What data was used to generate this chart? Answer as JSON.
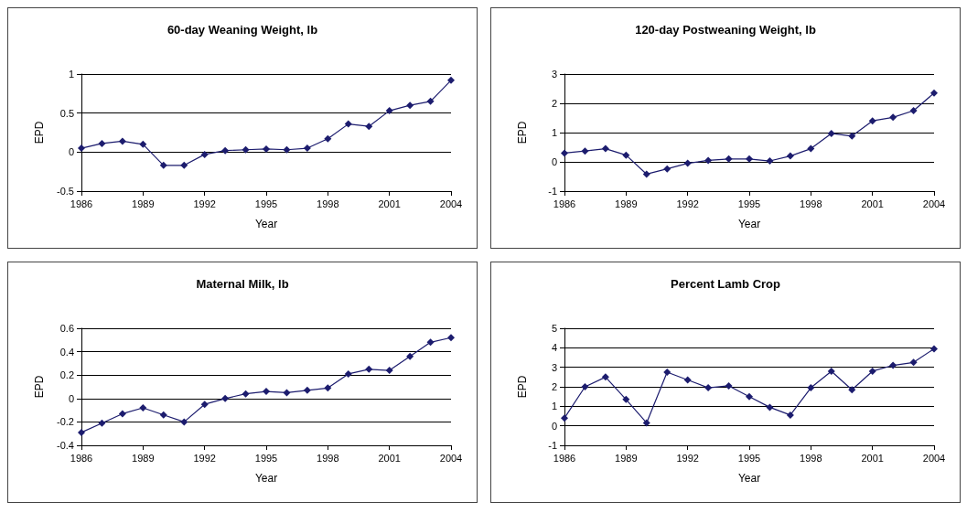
{
  "chart_data": [
    {
      "type": "line",
      "title": "60-day Weaning Weight, lb",
      "xlabel": "Year",
      "ylabel": "EPD",
      "color": "#1c1c6e",
      "marker": "diamond",
      "grid": "y",
      "x": [
        1986,
        1987,
        1988,
        1989,
        1990,
        1991,
        1992,
        1993,
        1994,
        1995,
        1996,
        1997,
        1998,
        1999,
        2000,
        2001,
        2002,
        2003,
        2004
      ],
      "values": [
        0.05,
        0.11,
        0.14,
        0.1,
        -0.17,
        -0.17,
        -0.03,
        0.02,
        0.03,
        0.04,
        0.03,
        0.05,
        0.17,
        0.36,
        0.33,
        0.53,
        0.6,
        0.65,
        0.92
      ],
      "xlim": [
        1986,
        2004
      ],
      "xticks": [
        1986,
        1989,
        1992,
        1995,
        1998,
        2001,
        2004
      ],
      "ylim": [
        -0.5,
        1
      ],
      "yticks": [
        -0.5,
        0,
        0.5,
        1
      ]
    },
    {
      "type": "line",
      "title": "120-day Postweaning Weight, lb",
      "xlabel": "Year",
      "ylabel": "EPD",
      "color": "#1c1c6e",
      "marker": "diamond",
      "grid": "y",
      "x": [
        1986,
        1987,
        1988,
        1989,
        1990,
        1991,
        1992,
        1993,
        1994,
        1995,
        1996,
        1997,
        1998,
        1999,
        2000,
        2001,
        2002,
        2003,
        2004
      ],
      "values": [
        0.3,
        0.37,
        0.45,
        0.23,
        -0.42,
        -0.24,
        -0.05,
        0.05,
        0.1,
        0.1,
        0.03,
        0.2,
        0.45,
        0.97,
        0.88,
        1.4,
        1.52,
        1.75,
        2.35
      ],
      "xlim": [
        1986,
        2004
      ],
      "xticks": [
        1986,
        1989,
        1992,
        1995,
        1998,
        2001,
        2004
      ],
      "ylim": [
        -1,
        3
      ],
      "yticks": [
        -1,
        0,
        1,
        2,
        3
      ]
    },
    {
      "type": "line",
      "title": "Maternal Milk, lb",
      "xlabel": "Year",
      "ylabel": "EPD",
      "color": "#1c1c6e",
      "marker": "diamond",
      "grid": "y",
      "x": [
        1986,
        1987,
        1988,
        1989,
        1990,
        1991,
        1992,
        1993,
        1994,
        1995,
        1996,
        1997,
        1998,
        1999,
        2000,
        2001,
        2002,
        2003,
        2004
      ],
      "values": [
        -0.29,
        -0.21,
        -0.13,
        -0.08,
        -0.14,
        -0.2,
        -0.05,
        0,
        0.04,
        0.06,
        0.05,
        0.07,
        0.09,
        0.21,
        0.25,
        0.24,
        0.36,
        0.48,
        0.52
      ],
      "xlim": [
        1986,
        2004
      ],
      "xticks": [
        1986,
        1989,
        1992,
        1995,
        1998,
        2001,
        2004
      ],
      "ylim": [
        -0.4,
        0.6
      ],
      "yticks": [
        -0.4,
        -0.2,
        0,
        0.2,
        0.4,
        0.6
      ]
    },
    {
      "type": "line",
      "title": "Percent Lamb Crop",
      "xlabel": "Year",
      "ylabel": "EPD",
      "color": "#1c1c6e",
      "marker": "diamond",
      "grid": "y",
      "x": [
        1986,
        1987,
        1988,
        1989,
        1990,
        1991,
        1992,
        1993,
        1994,
        1995,
        1996,
        1997,
        1998,
        1999,
        2000,
        2001,
        2002,
        2003,
        2004
      ],
      "values": [
        0.4,
        2.0,
        2.5,
        1.35,
        0.15,
        2.75,
        2.35,
        1.95,
        2.05,
        1.5,
        0.95,
        0.55,
        1.95,
        2.8,
        1.85,
        2.8,
        3.1,
        3.25,
        3.95
      ],
      "xlim": [
        1986,
        2004
      ],
      "xticks": [
        1986,
        1989,
        1992,
        1995,
        1998,
        2001,
        2004
      ],
      "ylim": [
        -1,
        5
      ],
      "yticks": [
        -1,
        0,
        1,
        2,
        3,
        4,
        5
      ]
    }
  ]
}
